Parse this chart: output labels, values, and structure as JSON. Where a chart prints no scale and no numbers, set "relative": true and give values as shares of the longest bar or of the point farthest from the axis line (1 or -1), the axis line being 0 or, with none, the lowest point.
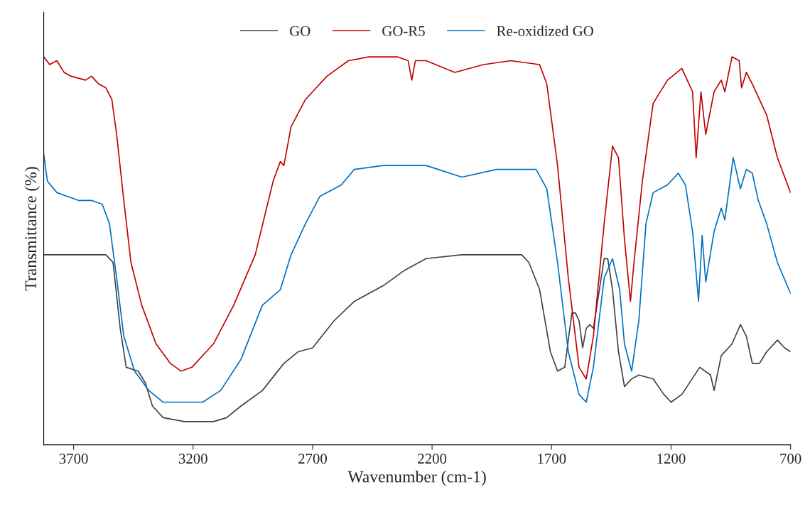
{
  "chart_data": {
    "type": "line",
    "relative": true,
    "xlabel": "Wavenumber (cm-1)",
    "ylabel": "Transmittance (%)",
    "xlim": [
      3825,
      700
    ],
    "xticks": [
      3700,
      3200,
      2700,
      2200,
      1700,
      1200,
      700
    ],
    "tick_labels": "x",
    "grid": false,
    "legend": "top",
    "marker": "none",
    "line_style": "solid",
    "series": [
      {
        "name": "GO",
        "color": "#404040",
        "x": [
          3825,
          3565,
          3535,
          3505,
          3480,
          3430,
          3400,
          3370,
          3325,
          3235,
          3115,
          3060,
          3000,
          2910,
          2820,
          2760,
          2700,
          2610,
          2525,
          2405,
          2315,
          2225,
          2075,
          1870,
          1825,
          1795,
          1750,
          1705,
          1675,
          1645,
          1615,
          1600,
          1585,
          1570,
          1555,
          1540,
          1525,
          1510,
          1480,
          1465,
          1445,
          1420,
          1395,
          1365,
          1335,
          1275,
          1230,
          1200,
          1155,
          1080,
          1035,
          1020,
          990,
          945,
          910,
          885,
          860,
          830,
          800,
          755,
          725,
          700
        ],
        "values": [
          0.49,
          0.49,
          0.47,
          0.3,
          0.2,
          0.19,
          0.16,
          0.1,
          0.07,
          0.06,
          0.06,
          0.07,
          0.1,
          0.14,
          0.21,
          0.24,
          0.25,
          0.32,
          0.37,
          0.41,
          0.45,
          0.48,
          0.49,
          0.49,
          0.49,
          0.47,
          0.4,
          0.24,
          0.19,
          0.2,
          0.34,
          0.34,
          0.32,
          0.25,
          0.3,
          0.31,
          0.3,
          0.36,
          0.48,
          0.48,
          0.4,
          0.24,
          0.15,
          0.17,
          0.18,
          0.17,
          0.13,
          0.11,
          0.13,
          0.2,
          0.18,
          0.14,
          0.23,
          0.26,
          0.31,
          0.28,
          0.21,
          0.21,
          0.24,
          0.27,
          0.25,
          0.24
        ]
      },
      {
        "name": "GO-R5",
        "color": "#c00000",
        "x": [
          3825,
          3800,
          3770,
          3740,
          3710,
          3650,
          3625,
          3595,
          3565,
          3540,
          3520,
          3490,
          3460,
          3415,
          3355,
          3295,
          3250,
          3205,
          3115,
          3030,
          2940,
          2865,
          2835,
          2820,
          2790,
          2730,
          2700,
          2640,
          2550,
          2465,
          2345,
          2300,
          2285,
          2270,
          2225,
          2105,
          1985,
          1870,
          1750,
          1720,
          1675,
          1630,
          1585,
          1555,
          1525,
          1480,
          1445,
          1420,
          1395,
          1370,
          1355,
          1320,
          1275,
          1215,
          1155,
          1110,
          1095,
          1075,
          1055,
          1020,
          990,
          975,
          945,
          915,
          905,
          885,
          860,
          800,
          755,
          700
        ],
        "values": [
          1.0,
          0.98,
          0.99,
          0.96,
          0.95,
          0.94,
          0.95,
          0.93,
          0.92,
          0.89,
          0.8,
          0.63,
          0.47,
          0.36,
          0.26,
          0.21,
          0.19,
          0.2,
          0.26,
          0.36,
          0.49,
          0.68,
          0.73,
          0.72,
          0.82,
          0.89,
          0.91,
          0.95,
          0.99,
          1.0,
          1.0,
          0.99,
          0.94,
          0.99,
          0.99,
          0.96,
          0.98,
          0.99,
          0.98,
          0.93,
          0.72,
          0.43,
          0.2,
          0.17,
          0.28,
          0.57,
          0.77,
          0.74,
          0.53,
          0.37,
          0.47,
          0.68,
          0.88,
          0.94,
          0.97,
          0.91,
          0.74,
          0.91,
          0.8,
          0.91,
          0.94,
          0.91,
          1.0,
          0.99,
          0.92,
          0.96,
          0.93,
          0.85,
          0.74,
          0.65
        ]
      },
      {
        "name": "Re-oxidized GO",
        "color": "#0070c0",
        "x": [
          3825,
          3810,
          3770,
          3725,
          3680,
          3625,
          3580,
          3550,
          3520,
          3490,
          3445,
          3385,
          3325,
          3265,
          3160,
          3085,
          3000,
          2910,
          2835,
          2790,
          2730,
          2670,
          2580,
          2525,
          2405,
          2225,
          2075,
          1930,
          1765,
          1720,
          1675,
          1630,
          1585,
          1555,
          1525,
          1480,
          1445,
          1415,
          1395,
          1365,
          1335,
          1305,
          1275,
          1215,
          1170,
          1140,
          1110,
          1085,
          1070,
          1055,
          1020,
          990,
          975,
          940,
          910,
          885,
          860,
          835,
          800,
          755,
          700
        ],
        "values": [
          0.75,
          0.68,
          0.65,
          0.64,
          0.63,
          0.63,
          0.62,
          0.57,
          0.43,
          0.28,
          0.19,
          0.14,
          0.11,
          0.11,
          0.11,
          0.14,
          0.22,
          0.36,
          0.4,
          0.49,
          0.57,
          0.64,
          0.67,
          0.71,
          0.72,
          0.72,
          0.69,
          0.71,
          0.71,
          0.66,
          0.47,
          0.24,
          0.13,
          0.11,
          0.2,
          0.43,
          0.48,
          0.4,
          0.26,
          0.19,
          0.32,
          0.57,
          0.65,
          0.67,
          0.7,
          0.67,
          0.55,
          0.37,
          0.54,
          0.42,
          0.55,
          0.61,
          0.58,
          0.74,
          0.66,
          0.71,
          0.7,
          0.63,
          0.57,
          0.47,
          0.39
        ]
      }
    ]
  }
}
